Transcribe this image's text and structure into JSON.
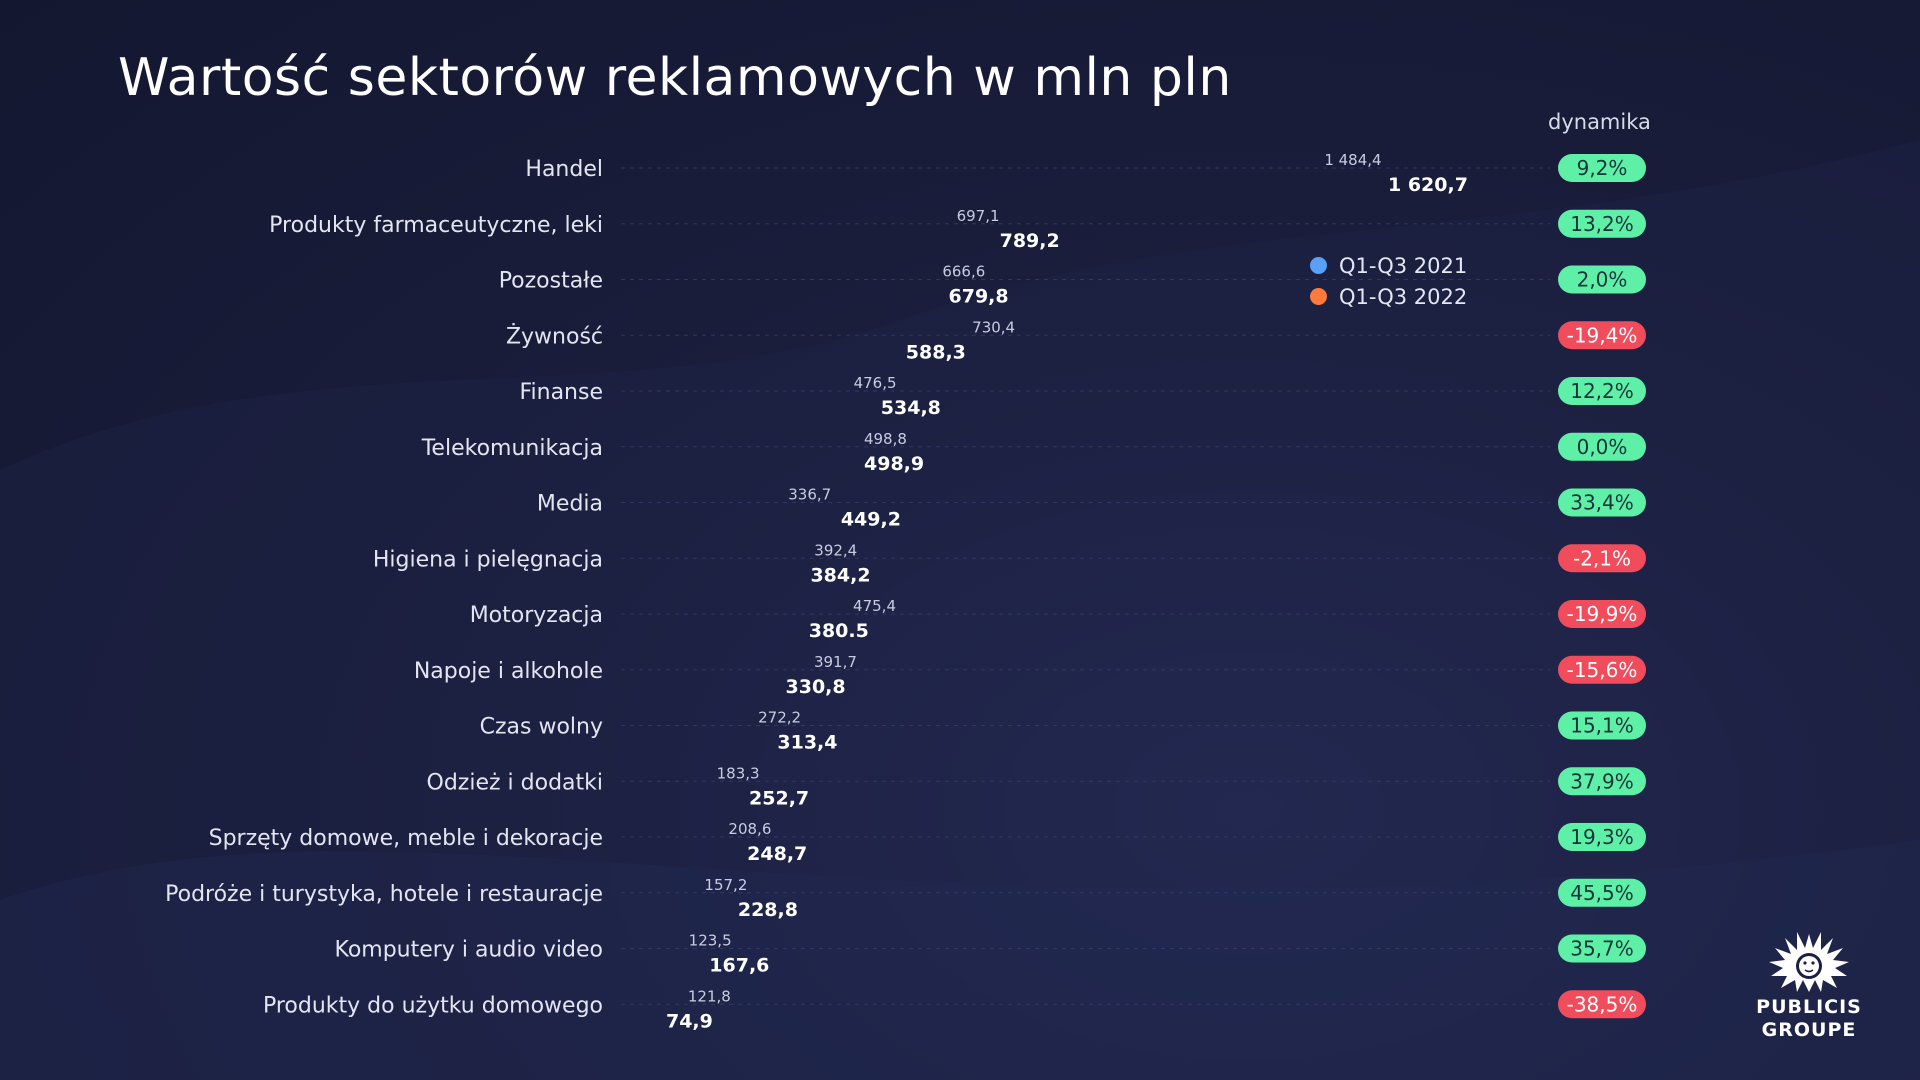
{
  "title": "Wartość sektorów reklamowych w mln pln",
  "dynamics_header": "dynamika",
  "colors": {
    "series_2021_start": "#5661f0",
    "series_2021_end": "#56c4f5",
    "series_2022_start": "#ff5566",
    "series_2022_end": "#ff8a2e",
    "positive_badge": "#5ff0a8",
    "negative_badge": "#f04c5c"
  },
  "legend": [
    {
      "label": "Q1-Q3 2021",
      "color": "#5aa0f7"
    },
    {
      "label": "Q1-Q3 2022",
      "color": "#ff7a3a"
    }
  ],
  "logo": {
    "line1": "PUBLICIS",
    "line2": "GROUPE"
  },
  "chart_data": {
    "type": "bar",
    "orientation": "horizontal",
    "categories": [
      "Handel",
      "Produkty farmaceutyczne, leki",
      "Pozostałe",
      "Żywność",
      "Finanse",
      "Telekomunikacja",
      "Media",
      "Higiena i pielęgnacja",
      "Motoryzacja",
      "Napoje i alkohole",
      "Czas wolny",
      "Odzież i dodatki",
      "Sprzęty domowe, meble i dekoracje",
      "Podróże i turystyka, hotele i restauracje",
      "Komputery i audio video",
      "Produkty do użytku domowego"
    ],
    "series": [
      {
        "name": "Q1-Q3 2021",
        "values": [
          1484.4,
          697.1,
          666.6,
          730.4,
          476.5,
          498.8,
          336.7,
          392.4,
          475.4,
          391.7,
          272.2,
          183.3,
          208.6,
          157.2,
          123.5,
          121.8
        ],
        "labels": [
          "1 484,4",
          "697,1",
          "666,6",
          "730,4",
          "476,5",
          "498,8",
          "336,7",
          "392,4",
          "475,4",
          "391,7",
          "272,2",
          "183,3",
          "208,6",
          "157,2",
          "123,5",
          "121,8"
        ]
      },
      {
        "name": "Q1-Q3 2022",
        "values": [
          1620.7,
          789.2,
          679.8,
          588.3,
          534.8,
          498.9,
          449.2,
          384.2,
          380.5,
          330.8,
          313.4,
          252.7,
          248.7,
          228.8,
          167.6,
          74.9
        ],
        "labels": [
          "1 620,7",
          "789,2",
          "679,8",
          "588,3",
          "534,8",
          "498,9",
          "449,2",
          "384,2",
          "380.5",
          "330,8",
          "313,4",
          "252,7",
          "248,7",
          "228,8",
          "167,6",
          "74,9"
        ]
      }
    ],
    "dynamics": [
      "9,2%",
      "13,2%",
      "2,0%",
      "-19,4%",
      "12,2%",
      "0,0%",
      "33,4%",
      "-2,1%",
      "-19,9%",
      "-15,6%",
      "15,1%",
      "37,9%",
      "19,3%",
      "45,5%",
      "35,7%",
      "-38,5%"
    ],
    "xlim": [
      0,
      1620.7
    ],
    "grid": false,
    "legend_position": "right"
  }
}
